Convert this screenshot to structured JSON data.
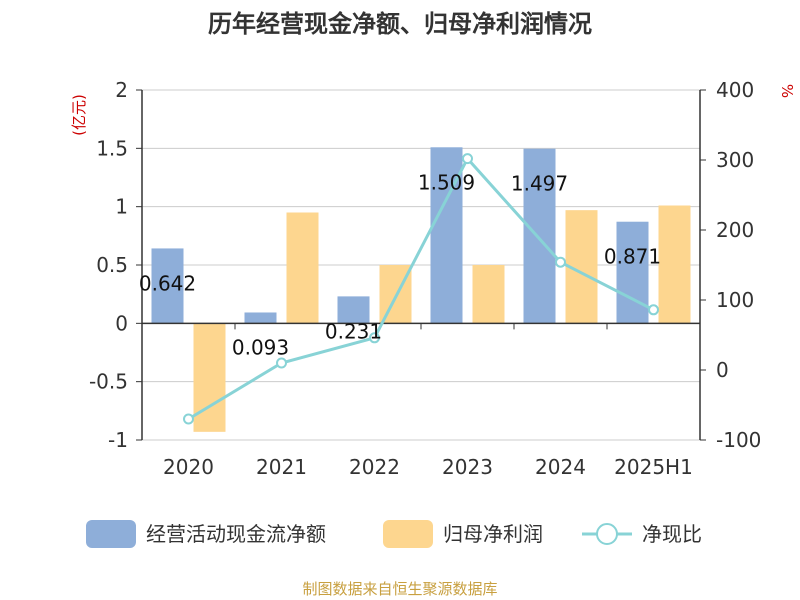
{
  "chart_data": {
    "type": "bar",
    "title": "历年经营现金净额、归母净利润情况",
    "categories": [
      "2020",
      "2021",
      "2022",
      "2023",
      "2024",
      "2025H1"
    ],
    "series": [
      {
        "name": "经营活动现金流净额",
        "type": "bar",
        "axis": "left",
        "values": [
          0.642,
          0.093,
          0.231,
          1.509,
          1.497,
          0.871
        ],
        "labels": [
          "0.642",
          "0.093",
          "0.231",
          "1.509",
          "1.497",
          "0.871"
        ],
        "color": "#8eaed9"
      },
      {
        "name": "归母净利润",
        "type": "bar",
        "axis": "left",
        "values": [
          -0.93,
          0.95,
          0.5,
          0.5,
          0.97,
          1.01
        ],
        "color": "#fdd68f"
      },
      {
        "name": "净现比",
        "type": "line",
        "axis": "right",
        "values": [
          -70,
          10,
          46,
          302,
          154,
          86
        ],
        "color": "#88d3d6"
      }
    ],
    "y_left": {
      "unit": "(亿元)",
      "min": -1,
      "max": 2,
      "ticks": [
        2,
        1.5,
        1,
        0.5,
        0,
        -0.5,
        -1
      ],
      "tick_labels": [
        "2",
        "1.5",
        "1",
        "0.5",
        "0",
        "-0.5",
        "-1"
      ]
    },
    "y_right": {
      "unit": "%",
      "min": -100,
      "max": 400,
      "ticks": [
        400,
        300,
        200,
        100,
        0,
        -100
      ],
      "tick_labels": [
        "400",
        "300",
        "200",
        "100",
        "0",
        "-100"
      ]
    },
    "grid": true,
    "legend_position": "bottom"
  },
  "source": "制图数据来自恒生聚源数据库"
}
